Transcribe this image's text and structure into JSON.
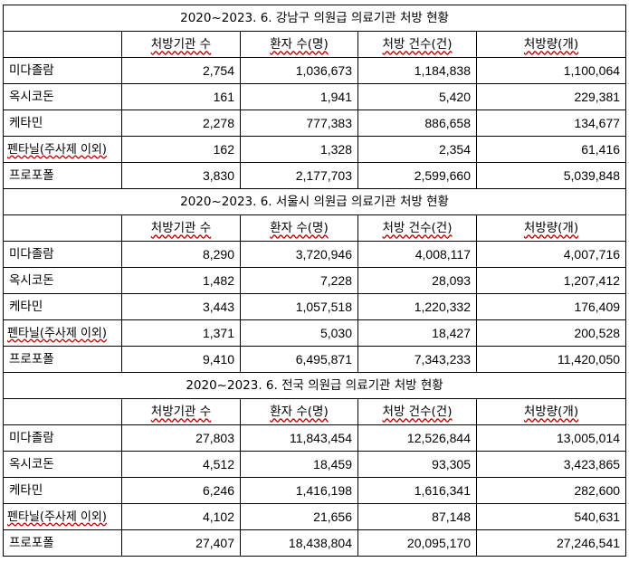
{
  "sections": [
    {
      "title": "2020~2023. 6. 강남구 의원급 의료기관 처방 현황",
      "headers": [
        "처방기관 수",
        "환자 수(명)",
        "처방 건수(건)",
        "처방량(개)"
      ],
      "rows": [
        {
          "label": "미다졸람",
          "values": [
            "2,754",
            "1,036,673",
            "1,184,838",
            "1,100,064"
          ]
        },
        {
          "label": "옥시코돈",
          "values": [
            "161",
            "1,941",
            "5,420",
            "229,381"
          ]
        },
        {
          "label": "케타민",
          "values": [
            "2,278",
            "777,383",
            "886,658",
            "134,677"
          ]
        },
        {
          "label": "펜타닐(주사제 이외)",
          "values": [
            "162",
            "1,328",
            "2,354",
            "61,416"
          ]
        },
        {
          "label": "프로포폴",
          "values": [
            "3,830",
            "2,177,703",
            "2,599,660",
            "5,039,848"
          ]
        }
      ]
    },
    {
      "title": "2020~2023. 6. 서울시 의원급 의료기관 처방 현황",
      "headers": [
        "처방기관 수",
        "환자 수(명)",
        "처방 건수(건)",
        "처방량(개)"
      ],
      "rows": [
        {
          "label": "미다졸람",
          "values": [
            "8,290",
            "3,720,946",
            "4,008,117",
            "4,007,716"
          ]
        },
        {
          "label": "옥시코돈",
          "values": [
            "1,482",
            "7,228",
            "28,093",
            "1,207,412"
          ]
        },
        {
          "label": "케타민",
          "values": [
            "3,443",
            "1,057,518",
            "1,220,332",
            "176,409"
          ]
        },
        {
          "label": "펜타닐(주사제 이외)",
          "values": [
            "1,371",
            "5,030",
            "18,427",
            "200,528"
          ]
        },
        {
          "label": "프로포폴",
          "values": [
            "9,410",
            "6,495,871",
            "7,343,233",
            "11,420,050"
          ]
        }
      ]
    },
    {
      "title": "2020~2023. 6. 전국 의원급 의료기관 처방 현황",
      "headers": [
        "처방기관 수",
        "환자 수(명)",
        "처방 건수(건)",
        "처방량(개)"
      ],
      "rows": [
        {
          "label": "미다졸람",
          "values": [
            "27,803",
            "11,843,454",
            "12,526,844",
            "13,005,014"
          ]
        },
        {
          "label": "옥시코돈",
          "values": [
            "4,512",
            "18,459",
            "93,305",
            "3,423,865"
          ]
        },
        {
          "label": "케타민",
          "values": [
            "6,246",
            "1,416,198",
            "1,616,341",
            "282,600"
          ]
        },
        {
          "label": "펜타닐(주사제 이외)",
          "values": [
            "4,102",
            "21,656",
            "87,148",
            "540,631"
          ]
        },
        {
          "label": "프로포폴",
          "values": [
            "27,407",
            "18,438,804",
            "20,095,170",
            "27,246,541"
          ]
        }
      ]
    }
  ]
}
